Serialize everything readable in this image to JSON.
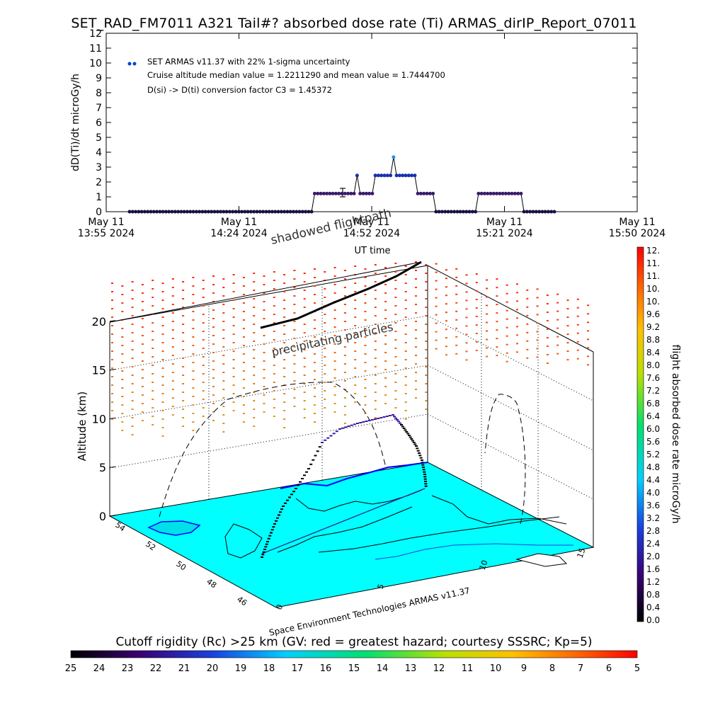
{
  "title": "SET_RAD_FM7011  A321 Tail#? absorbed dose rate (Ti) ARMAS_dirIP_Report_07011",
  "chart_data": [
    {
      "type": "scatter",
      "ylabel": "dD(Ti)/dt microGy/h",
      "xlabel": "UT time",
      "ylim": [
        0,
        12
      ],
      "yticks": [
        "0",
        "1",
        "2",
        "3",
        "4",
        "5",
        "6",
        "7",
        "8",
        "9",
        "10",
        "11",
        "12"
      ],
      "xticks": [
        {
          "line1": "May 11",
          "line2": "13:55 2024"
        },
        {
          "line1": "May 11",
          "line2": "14:24 2024"
        },
        {
          "line1": "May 11",
          "line2": "14:52 2024"
        },
        {
          "line1": "May 11",
          "line2": "15:21 2024"
        },
        {
          "line1": "May 11",
          "line2": "15:50 2024"
        }
      ],
      "legend": {
        "series": "SET ARMAS v11.37 with 22% 1-sigma uncertainty",
        "line2": "Cruise altitude median value = 1.2211290 and mean value = 1.7444700",
        "line3": "D(si) -> D(ti) conversion factor C3 = 1.45372"
      },
      "values": [
        0,
        0,
        0,
        0,
        0,
        0,
        0,
        0,
        0,
        0,
        0,
        0,
        0,
        0,
        0,
        0,
        0,
        0,
        0,
        0,
        0,
        0,
        0,
        0,
        0,
        0,
        0,
        0,
        0,
        0,
        0,
        0,
        0,
        0,
        0,
        0,
        0,
        0,
        0,
        0,
        0,
        0,
        0,
        0,
        0,
        0,
        0,
        0,
        0,
        0,
        0,
        0,
        0,
        0,
        0,
        0,
        0,
        0,
        0,
        0,
        0,
        1.22,
        1.22,
        1.22,
        1.22,
        1.22,
        1.22,
        1.22,
        1.22,
        1.22,
        1.22,
        1.22,
        1.22,
        1.22,
        1.22,
        2.44,
        1.22,
        1.22,
        1.22,
        1.22,
        1.22,
        2.44,
        2.44,
        2.44,
        2.44,
        2.44,
        2.44,
        3.67,
        2.44,
        2.44,
        2.44,
        2.44,
        2.44,
        2.44,
        2.44,
        1.22,
        1.22,
        1.22,
        1.22,
        1.22,
        1.22,
        0,
        0,
        0,
        0,
        0,
        0,
        0,
        0,
        0,
        0,
        0,
        0,
        0,
        0,
        1.22,
        1.22,
        1.22,
        1.22,
        1.22,
        1.22,
        1.22,
        1.22,
        1.22,
        1.22,
        1.22,
        1.22,
        1.22,
        1.22,
        1.22,
        0,
        0,
        0,
        0,
        0,
        0,
        0,
        0,
        0,
        0,
        0
      ],
      "error_bar": {
        "value": 1.22,
        "sigma": 0.27
      }
    },
    {
      "type": "3d-flight-path",
      "zlabel": "Altitude (km)",
      "zticks": [
        "0",
        "5",
        "10",
        "15",
        "20"
      ],
      "ylabel_ticks": [
        "54",
        "52",
        "50",
        "48",
        "46"
      ],
      "xlabel_ticks": [
        "0",
        "5",
        "10",
        "15"
      ],
      "annotations": [
        "shadowed flightpath",
        "precipitating particles"
      ],
      "credit": "Space Environment Technologies ARMAS v11.37",
      "colorbar_label": "flight absorbed dose rate microGy/h",
      "colorbar_ticks": [
        "12.",
        "11.",
        "11.",
        "10.",
        "10.",
        "9.6",
        "9.2",
        "8.8",
        "8.4",
        "8.0",
        "7.6",
        "7.2",
        "6.8",
        "6.4",
        "6.0",
        "5.6",
        "5.2",
        "4.8",
        "4.4",
        "4.0",
        "3.6",
        "3.2",
        "2.8",
        "2.4",
        "2.0",
        "1.6",
        "1.2",
        "0.8",
        "0.4",
        "0.0"
      ],
      "rigidity_label": "Cutoff rigidity (Rc) >25 km (GV: red = greatest hazard; courtesy SSSRC; Kp=5)",
      "rigidity_ticks": [
        "25",
        "24",
        "23",
        "22",
        "21",
        "20",
        "19",
        "18",
        "17",
        "16",
        "15",
        "14",
        "13",
        "12",
        "11",
        "10",
        "9",
        "8",
        "7",
        "6",
        "5"
      ]
    }
  ]
}
